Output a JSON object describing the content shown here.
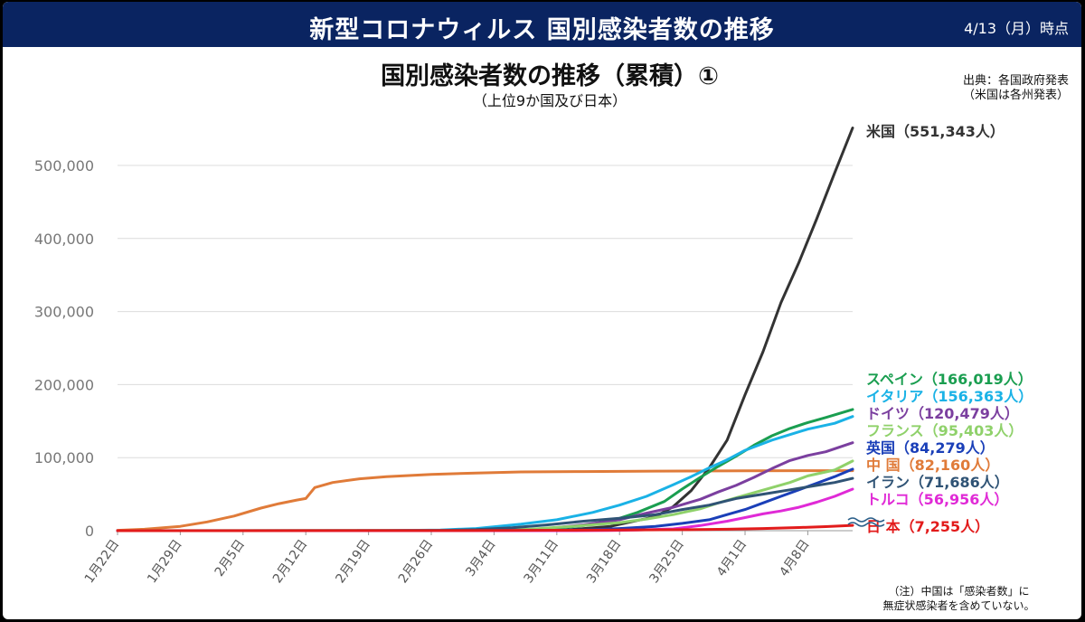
{
  "header": {
    "title": "新型コロナウィルス 国別感染者数の推移",
    "date": "4/13（月）時点"
  },
  "source": {
    "line1": "出典：各国政府発表",
    "line2": "（米国は各州発表）"
  },
  "note": {
    "line1": "（注）中国は「感染者数」に",
    "line2": "無症状感染者を含めていない。"
  },
  "chart_data": {
    "type": "line",
    "title": "国別感染者数の推移（累積）①",
    "subtitle": "（上位9か国及び日本）",
    "xlabel": "",
    "ylabel": "",
    "ylim": [
      0,
      550000
    ],
    "grid": true,
    "x_start": "1月22日",
    "x_end": "4月13日",
    "num_days": 83,
    "x_ticks": [
      {
        "day": 0,
        "label": "1月22日"
      },
      {
        "day": 7,
        "label": "1月29日"
      },
      {
        "day": 14,
        "label": "2月5日"
      },
      {
        "day": 21,
        "label": "2月12日"
      },
      {
        "day": 28,
        "label": "2月19日"
      },
      {
        "day": 35,
        "label": "2月26日"
      },
      {
        "day": 42,
        "label": "3月4日"
      },
      {
        "day": 49,
        "label": "3月11日"
      },
      {
        "day": 56,
        "label": "3月18日"
      },
      {
        "day": 63,
        "label": "3月25日"
      },
      {
        "day": 70,
        "label": "4月1日"
      },
      {
        "day": 77,
        "label": "4月8日"
      }
    ],
    "y_ticks": [
      {
        "value": 0,
        "label": "0"
      },
      {
        "value": 100000,
        "label": "100,000"
      },
      {
        "value": 200000,
        "label": "200,000"
      },
      {
        "value": 300000,
        "label": "300,000"
      },
      {
        "value": 400000,
        "label": "400,000"
      },
      {
        "value": 500000,
        "label": "500,000"
      }
    ],
    "series": [
      {
        "name": "中国",
        "label": "中 国（82,160人）",
        "color": "#e07b39",
        "final": 82160,
        "points": [
          [
            0,
            500
          ],
          [
            3,
            2000
          ],
          [
            7,
            6000
          ],
          [
            10,
            12000
          ],
          [
            13,
            20000
          ],
          [
            16,
            31000
          ],
          [
            18,
            37000
          ],
          [
            20,
            42000
          ],
          [
            21,
            44000
          ],
          [
            22,
            59000
          ],
          [
            24,
            66000
          ],
          [
            27,
            71000
          ],
          [
            30,
            74000
          ],
          [
            35,
            77000
          ],
          [
            40,
            79000
          ],
          [
            45,
            80500
          ],
          [
            52,
            81000
          ],
          [
            60,
            81500
          ],
          [
            70,
            82000
          ],
          [
            82,
            82160
          ]
        ]
      },
      {
        "name": "米国",
        "label": "米国（551,343人）",
        "color": "#333333",
        "final": 551343,
        "points": [
          [
            0,
            0
          ],
          [
            45,
            100
          ],
          [
            50,
            1000
          ],
          [
            55,
            6000
          ],
          [
            58,
            14000
          ],
          [
            60,
            19000
          ],
          [
            62,
            33000
          ],
          [
            64,
            55000
          ],
          [
            66,
            86000
          ],
          [
            68,
            124000
          ],
          [
            70,
            186000
          ],
          [
            72,
            245000
          ],
          [
            74,
            312000
          ],
          [
            76,
            367000
          ],
          [
            78,
            427000
          ],
          [
            80,
            490000
          ],
          [
            82,
            551343
          ]
        ]
      },
      {
        "name": "スペイン",
        "label": "スペイン（166,019人）",
        "color": "#1a9e50",
        "final": 166019,
        "points": [
          [
            0,
            0
          ],
          [
            42,
            200
          ],
          [
            48,
            2000
          ],
          [
            52,
            7000
          ],
          [
            55,
            13000
          ],
          [
            58,
            25000
          ],
          [
            61,
            40000
          ],
          [
            63,
            57000
          ],
          [
            65,
            73000
          ],
          [
            67,
            88000
          ],
          [
            69,
            102000
          ],
          [
            71,
            117000
          ],
          [
            73,
            130000
          ],
          [
            75,
            140000
          ],
          [
            77,
            148000
          ],
          [
            79,
            155000
          ],
          [
            82,
            166019
          ]
        ]
      },
      {
        "name": "イタリア",
        "label": "イタリア（156,363人）",
        "color": "#1ab2e6",
        "final": 156363,
        "points": [
          [
            0,
            0
          ],
          [
            30,
            100
          ],
          [
            36,
            1000
          ],
          [
            40,
            3000
          ],
          [
            45,
            9000
          ],
          [
            49,
            15000
          ],
          [
            53,
            25000
          ],
          [
            56,
            35000
          ],
          [
            59,
            47000
          ],
          [
            62,
            63000
          ],
          [
            64,
            74000
          ],
          [
            66,
            86000
          ],
          [
            68,
            97000
          ],
          [
            70,
            110000
          ],
          [
            73,
            124000
          ],
          [
            77,
            139000
          ],
          [
            80,
            147000
          ],
          [
            82,
            156363
          ]
        ]
      },
      {
        "name": "ドイツ",
        "label": "ドイツ（120,479人）",
        "color": "#7b3f9f",
        "final": 120479,
        "points": [
          [
            0,
            0
          ],
          [
            40,
            200
          ],
          [
            47,
            2000
          ],
          [
            52,
            8000
          ],
          [
            56,
            15000
          ],
          [
            59,
            24000
          ],
          [
            62,
            32000
          ],
          [
            65,
            43000
          ],
          [
            67,
            53000
          ],
          [
            69,
            62000
          ],
          [
            71,
            73000
          ],
          [
            73,
            85000
          ],
          [
            75,
            96000
          ],
          [
            77,
            103000
          ],
          [
            79,
            108000
          ],
          [
            82,
            120479
          ]
        ]
      },
      {
        "name": "フランス",
        "label": "フランス（95,403人）",
        "color": "#8fd16a",
        "final": 95403,
        "points": [
          [
            0,
            0
          ],
          [
            40,
            200
          ],
          [
            46,
            2000
          ],
          [
            52,
            7000
          ],
          [
            56,
            11000
          ],
          [
            59,
            16000
          ],
          [
            62,
            22000
          ],
          [
            65,
            30000
          ],
          [
            67,
            38000
          ],
          [
            69,
            45000
          ],
          [
            71,
            52000
          ],
          [
            73,
            59000
          ],
          [
            75,
            66000
          ],
          [
            77,
            75000
          ],
          [
            80,
            83000
          ],
          [
            82,
            95403
          ]
        ]
      },
      {
        "name": "英国",
        "label": "英国（84,279人）",
        "color": "#1a3fb8",
        "final": 84279,
        "points": [
          [
            0,
            0
          ],
          [
            45,
            100
          ],
          [
            52,
            1000
          ],
          [
            56,
            3000
          ],
          [
            60,
            6000
          ],
          [
            63,
            10000
          ],
          [
            66,
            15000
          ],
          [
            68,
            22000
          ],
          [
            70,
            29000
          ],
          [
            72,
            38000
          ],
          [
            74,
            47000
          ],
          [
            76,
            56000
          ],
          [
            78,
            65000
          ],
          [
            80,
            74000
          ],
          [
            82,
            84279
          ]
        ]
      },
      {
        "name": "イラン",
        "label": "イラン（71,686人）",
        "color": "#2f5375",
        "final": 71686,
        "points": [
          [
            0,
            0
          ],
          [
            30,
            50
          ],
          [
            36,
            300
          ],
          [
            40,
            1500
          ],
          [
            44,
            4000
          ],
          [
            48,
            8000
          ],
          [
            52,
            13000
          ],
          [
            56,
            17000
          ],
          [
            60,
            22000
          ],
          [
            63,
            29000
          ],
          [
            66,
            35000
          ],
          [
            69,
            44000
          ],
          [
            72,
            50000
          ],
          [
            75,
            56000
          ],
          [
            78,
            62000
          ],
          [
            80,
            66000
          ],
          [
            82,
            71686
          ]
        ]
      },
      {
        "name": "トルコ",
        "label": "トルコ（56,956人）",
        "color": "#e02ad6",
        "final": 56956,
        "points": [
          [
            0,
            0
          ],
          [
            50,
            0
          ],
          [
            55,
            200
          ],
          [
            58,
            1000
          ],
          [
            62,
            2500
          ],
          [
            65,
            7000
          ],
          [
            68,
            13000
          ],
          [
            70,
            18000
          ],
          [
            72,
            23000
          ],
          [
            74,
            27000
          ],
          [
            76,
            32000
          ],
          [
            78,
            39000
          ],
          [
            80,
            47000
          ],
          [
            82,
            56956
          ]
        ]
      },
      {
        "name": "日本",
        "label": "日 本（7,255人）",
        "color": "#e21b1b",
        "final": 7255,
        "points": [
          [
            0,
            0
          ],
          [
            14,
            20
          ],
          [
            28,
            80
          ],
          [
            42,
            300
          ],
          [
            49,
            600
          ],
          [
            56,
            900
          ],
          [
            63,
            1300
          ],
          [
            68,
            2000
          ],
          [
            72,
            3000
          ],
          [
            76,
            4300
          ],
          [
            79,
            5600
          ],
          [
            82,
            7255
          ]
        ]
      }
    ]
  }
}
